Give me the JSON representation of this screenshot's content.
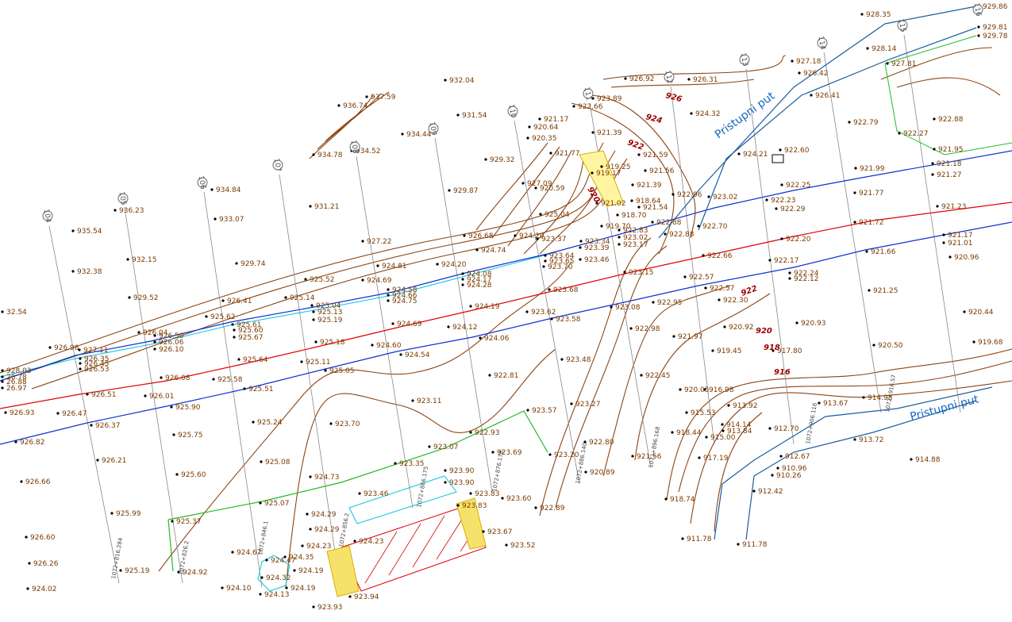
{
  "road_labels": [
    "Pristupni put",
    "Pristupni put"
  ],
  "contour_labels": [
    "926",
    "924",
    "922",
    "920",
    "922",
    "920",
    "918",
    "916"
  ],
  "profile_numbers": [
    "104",
    "105",
    "106",
    "107",
    "108",
    "109",
    "110",
    "111",
    "112",
    "113",
    "114",
    "115",
    "116"
  ],
  "station_labels": [
    "1072+816.284",
    "1072+826.2",
    "1072+846.1",
    "1072+856.2",
    "1072+866.175",
    "1072+876.178",
    "1072+886.140",
    "1072+896.168",
    "1072+906.116",
    "1072+916.57"
  ],
  "spot_heights": [
    "932.04",
    "931.54",
    "934.44",
    "934.78",
    "934.52",
    "936.74",
    "937.59",
    "934.84",
    "933.07",
    "931.21",
    "936.23",
    "935.54",
    "932.15",
    "932.38",
    "929.52",
    "929.74",
    "929.87",
    "929.32",
    "927.22",
    "926.68",
    "927.09",
    "925.52",
    "926.41",
    "925.14",
    "925.62",
    "925.04",
    "925.13",
    "925.19",
    "924.69",
    "924.81",
    "924.58",
    "924.66",
    "924.75",
    "924.20",
    "924.74",
    "924.20",
    "925.04",
    "924.08",
    "924.17",
    "924.28",
    "923.64",
    "923.65",
    "923.70",
    "923.37",
    "925.61",
    "925.60",
    "925.67",
    "926.04",
    "926.50",
    "926.06",
    "926.10",
    "926.98",
    "927.11",
    "926.35",
    "926.45",
    "926.53",
    "928.03",
    "26.78",
    "26.88",
    "26.97",
    "32.54",
    "926.08",
    "925.64",
    "925.18",
    "925.11",
    "925.05",
    "924.69",
    "924.19",
    "924.12",
    "924.06",
    "924.60",
    "924.54",
    "923.68",
    "923.62",
    "923.58",
    "925.58",
    "925.51",
    "926.01",
    "925.90",
    "926.51",
    "926.93",
    "926.47",
    "926.37",
    "926.82",
    "926.21",
    "926.66",
    "925.99",
    "926.60",
    "926.26",
    "924.02",
    "925.19",
    "925.75",
    "925.60",
    "925.24",
    "925.08",
    "925.37",
    "924.92",
    "924.67",
    "924.10",
    "924.13",
    "924.19",
    "924.19",
    "924.35",
    "924.47",
    "924.32",
    "925.07",
    "924.73",
    "924.29",
    "924.29",
    "924.23",
    "924.23",
    "923.94",
    "923.93",
    "923.46",
    "923.35",
    "923.70",
    "923.11",
    "923.07",
    "922.93",
    "923.57",
    "923.90",
    "923.90",
    "922.81",
    "923.83",
    "923.83",
    "923.60",
    "923.69",
    "923.67",
    "923.52",
    "922.89",
    "923.48",
    "923.27",
    "923.20",
    "922.80",
    "920.89",
    "923.08",
    "922.98",
    "922.45",
    "921.56",
    "923.15",
    "922.95",
    "922.57",
    "922.57",
    "922.30",
    "922.66",
    "922.88",
    "922.88",
    "922.70",
    "923.02",
    "922.96",
    "921.39",
    "921.56",
    "921.59",
    "921.54",
    "918.64",
    "918.70",
    "919.70",
    "921.02",
    "920.59",
    "921.77",
    "920.35",
    "920.64",
    "921.17",
    "921.39",
    "922.66",
    "923.89",
    "919.17",
    "919.25",
    "922.83",
    "923.02",
    "923.17",
    "923.34",
    "923.39",
    "923.46",
    "926.92",
    "926.31",
    "924.32",
    "927.18",
    "926.42",
    "926.41",
    "924.21",
    "922.60",
    "922.25",
    "922.23",
    "922.29",
    "922.20",
    "922.17",
    "922.24",
    "922.12",
    "920.92",
    "920.93",
    "919.45",
    "917.80",
    "921.97",
    "920.05",
    "916.98",
    "915.53",
    "913.92",
    "913.67",
    "914.98",
    "912.70",
    "914.14",
    "913.84",
    "918.44",
    "915.00",
    "917.19",
    "912.67",
    "910.96",
    "910.26",
    "912.42",
    "918.74",
    "911.78",
    "911.78",
    "913.72",
    "914.88",
    "922.79",
    "922.88",
    "921.95",
    "922.27",
    "921.99",
    "921.18",
    "921.27",
    "921.77",
    "921.23",
    "921.72",
    "921.17",
    "921.01",
    "921.66",
    "920.96",
    "921.25",
    "920.44",
    "920.50",
    "919.68",
    "928.35",
    "929.86",
    "928.14",
    "927.81",
    "929.81",
    "929.78"
  ]
}
